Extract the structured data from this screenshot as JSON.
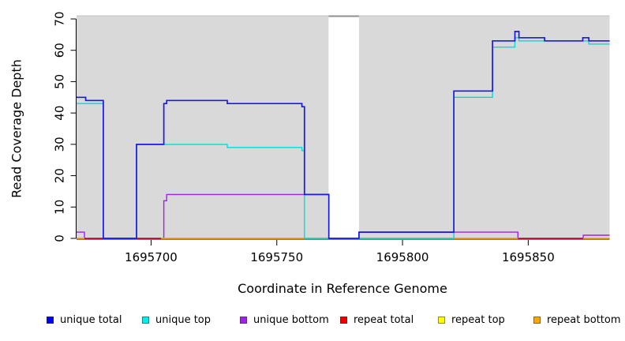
{
  "figure": {
    "xlabel": "Coordinate in Reference Genome",
    "ylabel": "Read Coverage Depth"
  },
  "chart_data": {
    "type": "line",
    "subtype": "step-coverage",
    "title": "",
    "xlabel": "Coordinate in Reference Genome",
    "ylabel": "Read Coverage Depth",
    "x_range": [
      1695670.35,
      1695882.4
    ],
    "y_range": [
      0,
      71.3
    ],
    "x_ticks": [
      1695700,
      1695750,
      1695800,
      1695850
    ],
    "y_ticks": [
      0,
      10,
      20,
      30,
      40,
      50,
      60,
      70
    ],
    "grid": false,
    "panel": {
      "bg_color": "#D9D9D9",
      "top_edge_color": "#C6C6C6",
      "uncovered_band": [
        1695770.6,
        1695782.7
      ],
      "uncovered_band_color": "#FFFFFF",
      "uncovered_band_cap_color": "#8F8F8F"
    },
    "series": [
      {
        "name": "unique bottom",
        "key": "unique_bottom",
        "color": "#A020F0",
        "width": 1.4,
        "steps": [
          [
            1695670.35,
            2
          ],
          [
            1695673.5,
            0
          ],
          [
            1695705.05,
            12
          ],
          [
            1695706.2,
            14
          ],
          [
            1695770.7,
            0
          ],
          [
            1695782.7,
            2
          ],
          [
            1695845.9,
            0
          ],
          [
            1695871.9,
            1
          ]
        ],
        "end": 1695882.4
      },
      {
        "name": "repeat total",
        "key": "repeat_total",
        "color": "#EE0000",
        "width": 1.3,
        "steps": [
          [
            1695670.35,
            0
          ]
        ],
        "end": 1695882.4
      },
      {
        "name": "repeat top",
        "key": "repeat_top",
        "color": "#FFFF00",
        "width": 1.2,
        "value": 0,
        "segments": [
          [
            1695670.35,
            1695673.5
          ],
          [
            1695704,
            1695845.9
          ],
          [
            1695871.9,
            1695882.4
          ]
        ]
      },
      {
        "name": "repeat bottom",
        "key": "repeat_bottom",
        "color": "#FFA500",
        "width": 1.5,
        "value": 0,
        "segments": [
          [
            1695670.35,
            1695673.5
          ],
          [
            1695704,
            1695845.9
          ],
          [
            1695871.9,
            1695882.4
          ]
        ]
      },
      {
        "name": "unique top",
        "key": "unique_top",
        "color": "#00DCDC",
        "width": 1.4,
        "steps": [
          [
            1695670.35,
            43
          ],
          [
            1695681,
            0
          ],
          [
            1695694.2,
            30
          ],
          [
            1695730.3,
            29
          ],
          [
            1695760,
            28
          ],
          [
            1695761,
            0
          ],
          [
            1695820.4,
            45
          ],
          [
            1695835.8,
            61
          ],
          [
            1695844.7,
            64
          ],
          [
            1695846.3,
            63
          ],
          [
            1695874.1,
            62
          ]
        ],
        "end": 1695882.4
      },
      {
        "name": "unique total",
        "key": "unique_total",
        "color": "#1A1AE6",
        "width": 1.7,
        "steps": [
          [
            1695670.35,
            45
          ],
          [
            1695674,
            44
          ],
          [
            1695681,
            0
          ],
          [
            1695694.2,
            30
          ],
          [
            1695705.05,
            43
          ],
          [
            1695706.2,
            44
          ],
          [
            1695730.3,
            43
          ],
          [
            1695760,
            42
          ],
          [
            1695761,
            14
          ],
          [
            1695770.7,
            0
          ],
          [
            1695782.7,
            2
          ],
          [
            1695820.4,
            47
          ],
          [
            1695835.8,
            63
          ],
          [
            1695844.7,
            66
          ],
          [
            1695846.3,
            64
          ],
          [
            1695856.5,
            63
          ],
          [
            1695871.7,
            64
          ],
          [
            1695874.1,
            63
          ]
        ],
        "end": 1695882.4
      }
    ],
    "legend_position": "bottom",
    "legend": [
      {
        "label": "unique total",
        "color": "#0000EE"
      },
      {
        "label": "unique top",
        "color": "#00EEEE"
      },
      {
        "label": "unique bottom",
        "color": "#A020F0"
      },
      {
        "label": "repeat total",
        "color": "#EE0000"
      },
      {
        "label": "repeat top",
        "color": "#FFFF00"
      },
      {
        "label": "repeat bottom",
        "color": "#FFA500"
      }
    ]
  }
}
